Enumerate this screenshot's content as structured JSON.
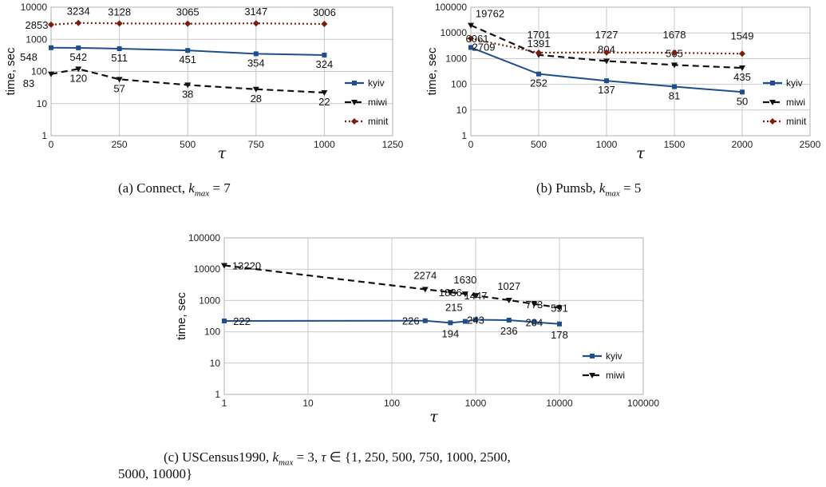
{
  "chart_data": [
    {
      "type": "line",
      "id": "a",
      "ylabel": "time, sec",
      "xlabel": "τ",
      "xscale": "linear",
      "yscale": "log",
      "xlim": [
        0,
        1250
      ],
      "ylim": [
        1,
        10000
      ],
      "xticks": [
        "0",
        "250",
        "500",
        "750",
        "1000",
        "1250"
      ],
      "yticks": [
        "1",
        "10",
        "100",
        "1000",
        "10000"
      ],
      "grid": true,
      "legend": "right",
      "series": [
        {
          "name": "kyiv",
          "color": "#1f4e8c",
          "style": "solid",
          "marker": "square",
          "x": [
            0,
            100,
            250,
            500,
            750,
            1000
          ],
          "values": [
            548,
            542,
            511,
            451,
            354,
            324
          ],
          "labels": [
            "548",
            "542",
            "511",
            "451",
            "354",
            "324"
          ]
        },
        {
          "name": "miwi",
          "color": "#111111",
          "style": "dashed",
          "marker": "triangle-down",
          "x": [
            0,
            100,
            250,
            500,
            750,
            1000
          ],
          "values": [
            83,
            120,
            57,
            38,
            28,
            22
          ],
          "labels": [
            "83",
            "120",
            "57",
            "38",
            "28",
            "22"
          ]
        },
        {
          "name": "minit",
          "color": "#7a1e0e",
          "style": "dotted",
          "marker": "diamond",
          "x": [
            0,
            100,
            250,
            500,
            750,
            1000
          ],
          "values": [
            2853,
            3234,
            3128,
            3065,
            3147,
            3006
          ],
          "labels": [
            "2853",
            "3234",
            "3128",
            "3065",
            "3147",
            "3006"
          ]
        }
      ]
    },
    {
      "type": "line",
      "id": "b",
      "ylabel": "time, sec",
      "xlabel": "τ",
      "xscale": "linear",
      "yscale": "log",
      "xlim": [
        0,
        2500
      ],
      "ylim": [
        1,
        100000
      ],
      "xticks": [
        "0",
        "500",
        "1000",
        "1500",
        "2000",
        "2500"
      ],
      "yticks": [
        "1",
        "10",
        "100",
        "1000",
        "10000",
        "100000"
      ],
      "grid": true,
      "legend": "right",
      "series": [
        {
          "name": "kyiv",
          "color": "#1f4e8c",
          "style": "solid",
          "marker": "square",
          "x": [
            0,
            500,
            1000,
            1500,
            2000
          ],
          "values": [
            2709,
            252,
            137,
            81,
            50
          ],
          "labels": [
            "2709",
            "252",
            "137",
            "81",
            "50"
          ]
        },
        {
          "name": "miwi",
          "color": "#111111",
          "style": "dashed",
          "marker": "triangle-down",
          "x": [
            0,
            500,
            1000,
            1500,
            2000
          ],
          "values": [
            19762,
            1391,
            804,
            565,
            435
          ],
          "labels": [
            "19762",
            "1391",
            "804",
            "565",
            "435"
          ]
        },
        {
          "name": "minit",
          "color": "#7a1e0e",
          "style": "dotted",
          "marker": "diamond",
          "x": [
            0,
            500,
            1000,
            1500,
            2000
          ],
          "values": [
            6061,
            1701,
            1727,
            1678,
            1549
          ],
          "labels": [
            "6061",
            "1701",
            "1727",
            "1678",
            "1549"
          ]
        }
      ]
    },
    {
      "type": "line",
      "id": "c",
      "ylabel": "time, sec",
      "xlabel": "τ",
      "xscale": "log",
      "yscale": "log",
      "xlim": [
        1,
        100000
      ],
      "ylim": [
        1,
        100000
      ],
      "xticks": [
        "1",
        "10",
        "100",
        "1000",
        "10000",
        "100000"
      ],
      "yticks": [
        "1",
        "10",
        "100",
        "1000",
        "10000",
        "100000"
      ],
      "grid": true,
      "legend": "right",
      "series": [
        {
          "name": "kyiv",
          "color": "#1f4e8c",
          "style": "solid",
          "marker": "square",
          "x": [
            1,
            250,
            500,
            750,
            1000,
            2500,
            5000,
            10000
          ],
          "values": [
            222,
            226,
            194,
            215,
            243,
            236,
            204,
            178
          ],
          "labels": [
            "222",
            "226",
            "194",
            "215",
            "243",
            "236",
            "204",
            "178"
          ]
        },
        {
          "name": "miwi",
          "color": "#111111",
          "style": "dashed",
          "marker": "triangle-down",
          "x": [
            1,
            250,
            500,
            750,
            1000,
            2500,
            5000,
            10000
          ],
          "values": [
            13220,
            2274,
            1836,
            1630,
            1447,
            1027,
            773,
            591
          ],
          "labels": [
            "13220",
            "2274",
            "1836",
            "1630",
            "1447",
            "1027",
            "773",
            "591"
          ]
        }
      ]
    }
  ],
  "captions": {
    "a": {
      "label": "(a) Connect, ",
      "kvar": "k",
      "ksub": "max",
      "rest": " = 7"
    },
    "b": {
      "label": "(b) Pumsb, ",
      "kvar": "k",
      "ksub": "max",
      "rest": " = 5"
    },
    "c": {
      "label": "(c) USCensus1990, ",
      "kvar": "k",
      "ksub": "max",
      "rest1": " = 3, ",
      "tau": "τ",
      "rest2": " ∈ {1, 250, 500, 750, 1000, 2500,",
      "line2": "5000, 10000}"
    }
  }
}
